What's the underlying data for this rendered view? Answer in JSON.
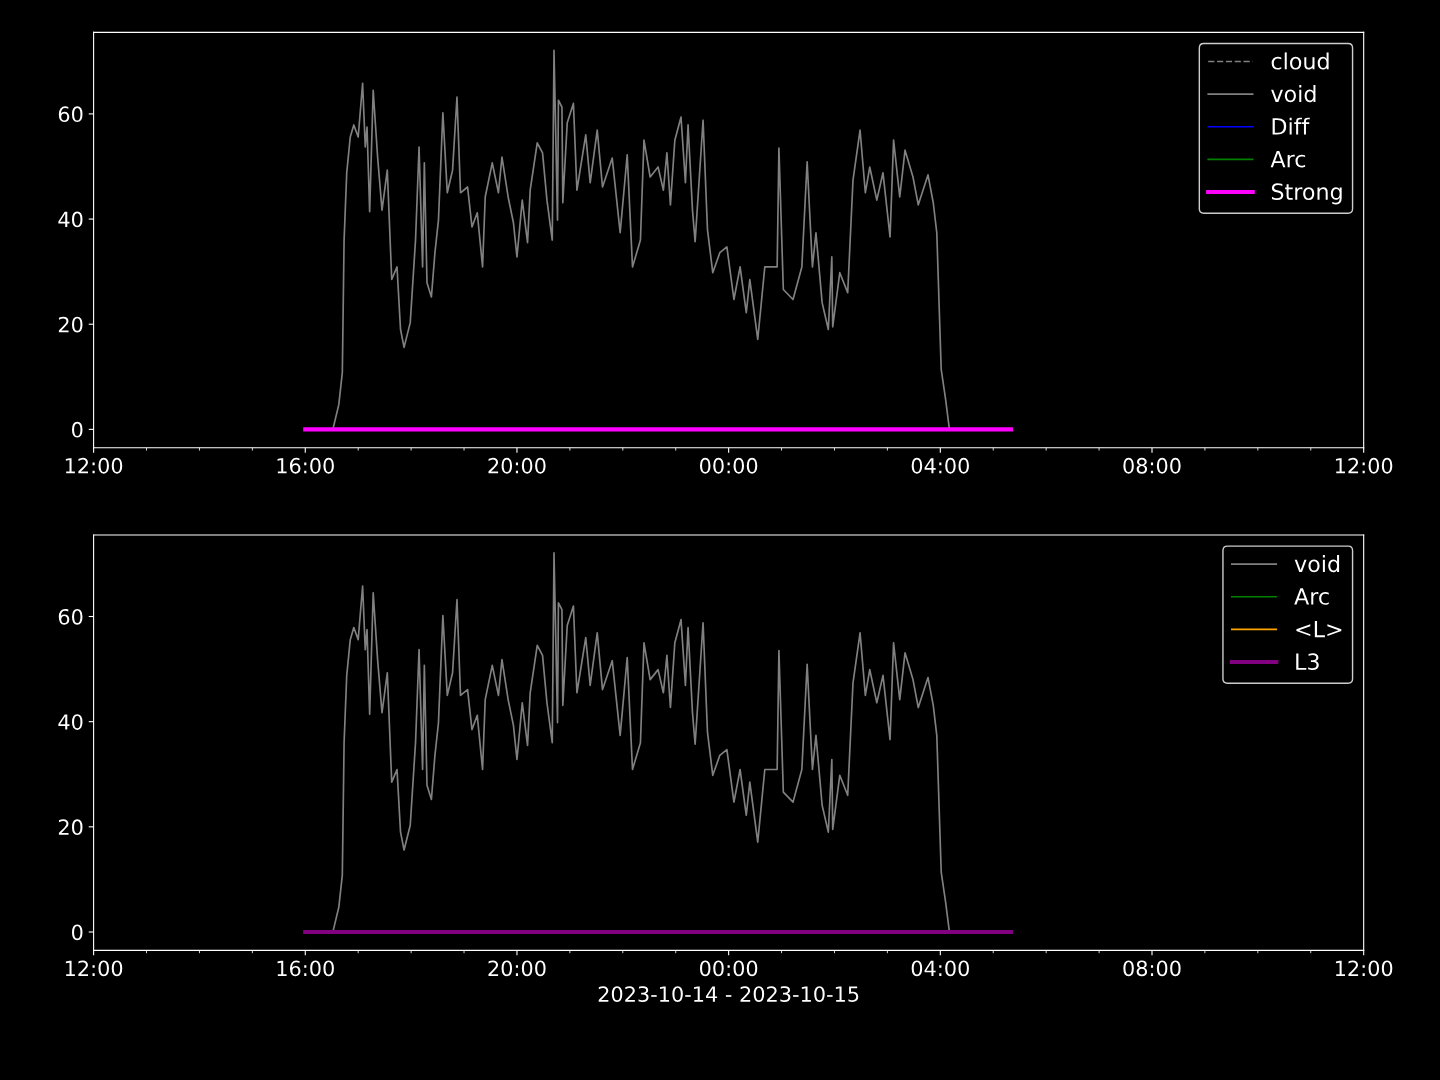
{
  "chart_data": [
    {
      "type": "line",
      "xlim": [
        "2023-10-14T12:00",
        "2023-10-15T12:00"
      ],
      "ylim": [
        -3.5,
        75.5
      ],
      "yticks": [
        0,
        20,
        40,
        60
      ],
      "xticks": [
        {
          "value": "2023-10-14T12:00",
          "label": "12:00"
        },
        {
          "value": "2023-10-14T16:00",
          "label": "16:00"
        },
        {
          "value": "2023-10-14T20:00",
          "label": "20:00"
        },
        {
          "value": "2023-10-15T00:00",
          "label": "00:00"
        },
        {
          "value": "2023-10-15T04:00",
          "label": "04:00"
        },
        {
          "value": "2023-10-15T08:00",
          "label": "08:00"
        },
        {
          "value": "2023-10-15T12:00",
          "label": "12:00"
        }
      ],
      "grid": false,
      "legend": "top right",
      "series": [
        {
          "name": "cloud",
          "color": "#808080",
          "line_style": "dashed"
        },
        {
          "name": "void",
          "color": "#808080",
          "line_style": "solid",
          "x": [
            "2023-10-14T16:32",
            "2023-10-14T16:38",
            "2023-10-14T16:42",
            "2023-10-14T16:44",
            "2023-10-14T16:47",
            "2023-10-14T16:51",
            "2023-10-14T16:55",
            "2023-10-14T17:00",
            "2023-10-14T17:05",
            "2023-10-14T17:08",
            "2023-10-14T17:10",
            "2023-10-14T17:13",
            "2023-10-14T17:17",
            "2023-10-14T17:22",
            "2023-10-14T17:27",
            "2023-10-14T17:33",
            "2023-10-14T17:38",
            "2023-10-14T17:44",
            "2023-10-14T17:48",
            "2023-10-14T17:52",
            "2023-10-14T17:59",
            "2023-10-14T18:05",
            "2023-10-14T18:09",
            "2023-10-14T18:13",
            "2023-10-14T18:15",
            "2023-10-14T18:18",
            "2023-10-14T18:23",
            "2023-10-14T18:27",
            "2023-10-14T18:31",
            "2023-10-14T18:36",
            "2023-10-14T18:41",
            "2023-10-14T18:47",
            "2023-10-14T18:52",
            "2023-10-14T18:56",
            "2023-10-14T19:04",
            "2023-10-14T19:09",
            "2023-10-14T19:15",
            "2023-10-14T19:21",
            "2023-10-14T19:24",
            "2023-10-14T19:32",
            "2023-10-14T19:39",
            "2023-10-14T19:43",
            "2023-10-14T19:50",
            "2023-10-14T19:56",
            "2023-10-14T20:00",
            "2023-10-14T20:06",
            "2023-10-14T20:12",
            "2023-10-14T20:15",
            "2023-10-14T20:23",
            "2023-10-14T20:29",
            "2023-10-14T20:34",
            "2023-10-14T20:40",
            "2023-10-14T20:42",
            "2023-10-14T20:46",
            "2023-10-14T20:47",
            "2023-10-14T20:51",
            "2023-10-14T20:52",
            "2023-10-14T20:57",
            "2023-10-14T21:04",
            "2023-10-14T21:08",
            "2023-10-14T21:18",
            "2023-10-14T21:23",
            "2023-10-14T21:31",
            "2023-10-14T21:37",
            "2023-10-14T21:48",
            "2023-10-14T21:57",
            "2023-10-14T22:05",
            "2023-10-14T22:11",
            "2023-10-14T22:20",
            "2023-10-14T22:24",
            "2023-10-14T22:31",
            "2023-10-14T22:40",
            "2023-10-14T22:46",
            "2023-10-14T22:50",
            "2023-10-14T22:54",
            "2023-10-14T22:59",
            "2023-10-14T23:06",
            "2023-10-14T23:11",
            "2023-10-14T23:14",
            "2023-10-14T23:19",
            "2023-10-14T23:22",
            "2023-10-14T23:31",
            "2023-10-14T23:36",
            "2023-10-14T23:42",
            "2023-10-14T23:50",
            "2023-10-14T23:58",
            "2023-10-15T00:06",
            "2023-10-15T00:13",
            "2023-10-15T00:20",
            "2023-10-15T00:24",
            "2023-10-15T00:33",
            "2023-10-15T00:41",
            "2023-10-15T00:55",
            "2023-10-15T00:57",
            "2023-10-15T01:02",
            "2023-10-15T01:13",
            "2023-10-15T01:23",
            "2023-10-15T01:29",
            "2023-10-15T01:35",
            "2023-10-15T01:39",
            "2023-10-15T01:46",
            "2023-10-15T01:53",
            "2023-10-15T01:57",
            "2023-10-15T01:58",
            "2023-10-15T02:06",
            "2023-10-15T02:15",
            "2023-10-15T02:21",
            "2023-10-15T02:29",
            "2023-10-15T02:35",
            "2023-10-15T02:40",
            "2023-10-15T02:48",
            "2023-10-15T02:55",
            "2023-10-15T03:03",
            "2023-10-15T03:07",
            "2023-10-15T03:14",
            "2023-10-15T03:20",
            "2023-10-15T03:29",
            "2023-10-15T03:35",
            "2023-10-15T03:46",
            "2023-10-15T03:52",
            "2023-10-15T03:56",
            "2023-10-15T04:01",
            "2023-10-15T04:06",
            "2023-10-15T04:10"
          ],
          "values": [
            0.5,
            4.7,
            10.8,
            36,
            48.8,
            55.6,
            57.9,
            55.6,
            65.8,
            53.7,
            57.5,
            41.4,
            64.5,
            51.8,
            41.7,
            49.3,
            28.5,
            30.9,
            19,
            15.6,
            20.3,
            36,
            53.7,
            30.9,
            50.7,
            27.9,
            25.2,
            33.6,
            39.8,
            60.2,
            45,
            49.3,
            63.2,
            45,
            46.1,
            38.5,
            41.2,
            30.9,
            44.2,
            50.7,
            45,
            51.8,
            44.2,
            39.3,
            32.8,
            43.6,
            35.5,
            45.5,
            54.5,
            52.6,
            43.6,
            36,
            72.1,
            39.8,
            62.6,
            61.3,
            43.1,
            58.3,
            62,
            45.5,
            56,
            46.9,
            56.9,
            46.1,
            51.6,
            37.4,
            52.2,
            30.9,
            36,
            55,
            48,
            49.9,
            45.5,
            52.6,
            42.7,
            55,
            59.4,
            46.9,
            57.9,
            41.7,
            35.7,
            58.8,
            38,
            29.8,
            33.6,
            34.7,
            24.7,
            30.9,
            22.2,
            28.5,
            17.1,
            30.9,
            30.9,
            53.5,
            26.6,
            24.7,
            30.9,
            50.9,
            30.9,
            37.4,
            24.1,
            19,
            32.8,
            19.5,
            29.8,
            26,
            47.4,
            56.9,
            45,
            49.9,
            43.6,
            48.8,
            36.6,
            55,
            44.2,
            53.1,
            48,
            42.7,
            48.4,
            43.1,
            37.4,
            11.4,
            5.7,
            0.4
          ]
        },
        {
          "name": "Diff",
          "color": "#0000ff",
          "line_style": "solid"
        },
        {
          "name": "Arc",
          "color": "#008000",
          "line_style": "solid"
        },
        {
          "name": "Strong",
          "color": "#ff00ff",
          "line_style": "solid",
          "x": [
            "2023-10-14T16:00",
            "2023-10-15T05:20"
          ],
          "values": [
            0,
            0
          ]
        }
      ]
    },
    {
      "type": "line",
      "xlabel": "2023-10-14 - 2023-10-15",
      "xlim": [
        "2023-10-14T12:00",
        "2023-10-15T12:00"
      ],
      "ylim": [
        -3.5,
        75.5
      ],
      "yticks": [
        0,
        20,
        40,
        60
      ],
      "xticks": [
        {
          "value": "2023-10-14T12:00",
          "label": "12:00"
        },
        {
          "value": "2023-10-14T16:00",
          "label": "16:00"
        },
        {
          "value": "2023-10-14T20:00",
          "label": "20:00"
        },
        {
          "value": "2023-10-15T00:00",
          "label": "00:00"
        },
        {
          "value": "2023-10-15T04:00",
          "label": "04:00"
        },
        {
          "value": "2023-10-15T08:00",
          "label": "08:00"
        },
        {
          "value": "2023-10-15T12:00",
          "label": "12:00"
        }
      ],
      "grid": false,
      "legend": "top right",
      "series": [
        {
          "name": "void",
          "color": "#808080",
          "line_style": "solid",
          "x": [
            "2023-10-14T16:32",
            "2023-10-14T16:38",
            "2023-10-14T16:42",
            "2023-10-14T16:44",
            "2023-10-14T16:47",
            "2023-10-14T16:51",
            "2023-10-14T16:55",
            "2023-10-14T17:00",
            "2023-10-14T17:05",
            "2023-10-14T17:08",
            "2023-10-14T17:10",
            "2023-10-14T17:13",
            "2023-10-14T17:17",
            "2023-10-14T17:22",
            "2023-10-14T17:27",
            "2023-10-14T17:33",
            "2023-10-14T17:38",
            "2023-10-14T17:44",
            "2023-10-14T17:48",
            "2023-10-14T17:52",
            "2023-10-14T17:59",
            "2023-10-14T18:05",
            "2023-10-14T18:09",
            "2023-10-14T18:13",
            "2023-10-14T18:15",
            "2023-10-14T18:18",
            "2023-10-14T18:23",
            "2023-10-14T18:27",
            "2023-10-14T18:31",
            "2023-10-14T18:36",
            "2023-10-14T18:41",
            "2023-10-14T18:47",
            "2023-10-14T18:52",
            "2023-10-14T18:56",
            "2023-10-14T19:04",
            "2023-10-14T19:09",
            "2023-10-14T19:15",
            "2023-10-14T19:21",
            "2023-10-14T19:24",
            "2023-10-14T19:32",
            "2023-10-14T19:39",
            "2023-10-14T19:43",
            "2023-10-14T19:50",
            "2023-10-14T19:56",
            "2023-10-14T20:00",
            "2023-10-14T20:06",
            "2023-10-14T20:12",
            "2023-10-14T20:15",
            "2023-10-14T20:23",
            "2023-10-14T20:29",
            "2023-10-14T20:34",
            "2023-10-14T20:40",
            "2023-10-14T20:42",
            "2023-10-14T20:46",
            "2023-10-14T20:47",
            "2023-10-14T20:51",
            "2023-10-14T20:52",
            "2023-10-14T20:57",
            "2023-10-14T21:04",
            "2023-10-14T21:08",
            "2023-10-14T21:18",
            "2023-10-14T21:23",
            "2023-10-14T21:31",
            "2023-10-14T21:37",
            "2023-10-14T21:48",
            "2023-10-14T21:57",
            "2023-10-14T22:05",
            "2023-10-14T22:11",
            "2023-10-14T22:20",
            "2023-10-14T22:24",
            "2023-10-14T22:31",
            "2023-10-14T22:40",
            "2023-10-14T22:46",
            "2023-10-14T22:50",
            "2023-10-14T22:54",
            "2023-10-14T22:59",
            "2023-10-14T23:06",
            "2023-10-14T23:11",
            "2023-10-14T23:14",
            "2023-10-14T23:19",
            "2023-10-14T23:22",
            "2023-10-14T23:31",
            "2023-10-14T23:36",
            "2023-10-14T23:42",
            "2023-10-14T23:50",
            "2023-10-14T23:58",
            "2023-10-15T00:06",
            "2023-10-15T00:13",
            "2023-10-15T00:20",
            "2023-10-15T00:24",
            "2023-10-15T00:33",
            "2023-10-15T00:41",
            "2023-10-15T00:55",
            "2023-10-15T00:57",
            "2023-10-15T01:02",
            "2023-10-15T01:13",
            "2023-10-15T01:23",
            "2023-10-15T01:29",
            "2023-10-15T01:35",
            "2023-10-15T01:39",
            "2023-10-15T01:46",
            "2023-10-15T01:53",
            "2023-10-15T01:57",
            "2023-10-15T01:58",
            "2023-10-15T02:06",
            "2023-10-15T02:15",
            "2023-10-15T02:21",
            "2023-10-15T02:29",
            "2023-10-15T02:35",
            "2023-10-15T02:40",
            "2023-10-15T02:48",
            "2023-10-15T02:55",
            "2023-10-15T03:03",
            "2023-10-15T03:07",
            "2023-10-15T03:14",
            "2023-10-15T03:20",
            "2023-10-15T03:29",
            "2023-10-15T03:35",
            "2023-10-15T03:46",
            "2023-10-15T03:52",
            "2023-10-15T03:56",
            "2023-10-15T04:01",
            "2023-10-15T04:06",
            "2023-10-15T04:10"
          ],
          "values": [
            0.5,
            4.7,
            10.8,
            36,
            48.8,
            55.6,
            57.9,
            55.6,
            65.8,
            53.7,
            57.5,
            41.4,
            64.5,
            51.8,
            41.7,
            49.3,
            28.5,
            30.9,
            19,
            15.6,
            20.3,
            36,
            53.7,
            30.9,
            50.7,
            27.9,
            25.2,
            33.6,
            39.8,
            60.2,
            45,
            49.3,
            63.2,
            45,
            46.1,
            38.5,
            41.2,
            30.9,
            44.2,
            50.7,
            45,
            51.8,
            44.2,
            39.3,
            32.8,
            43.6,
            35.5,
            45.5,
            54.5,
            52.6,
            43.6,
            36,
            72.1,
            39.8,
            62.6,
            61.3,
            43.1,
            58.3,
            62,
            45.5,
            56,
            46.9,
            56.9,
            46.1,
            51.6,
            37.4,
            52.2,
            30.9,
            36,
            55,
            48,
            49.9,
            45.5,
            52.6,
            42.7,
            55,
            59.4,
            46.9,
            57.9,
            41.7,
            35.7,
            58.8,
            38,
            29.8,
            33.6,
            34.7,
            24.7,
            30.9,
            22.2,
            28.5,
            17.1,
            30.9,
            30.9,
            53.5,
            26.6,
            24.7,
            30.9,
            50.9,
            30.9,
            37.4,
            24.1,
            19,
            32.8,
            19.5,
            29.8,
            26,
            47.4,
            56.9,
            45,
            49.9,
            43.6,
            48.8,
            36.6,
            55,
            44.2,
            53.1,
            48,
            42.7,
            48.4,
            43.1,
            37.4,
            11.4,
            5.7,
            0.4
          ]
        },
        {
          "name": "Arc",
          "color": "#008000",
          "line_style": "solid"
        },
        {
          "name": "<L>",
          "color": "#ffa500",
          "line_style": "solid"
        },
        {
          "name": "L3",
          "color": "#800080",
          "line_style": "solid",
          "x": [
            "2023-10-14T16:00",
            "2023-10-15T05:20"
          ],
          "values": [
            0,
            0
          ]
        }
      ]
    }
  ]
}
